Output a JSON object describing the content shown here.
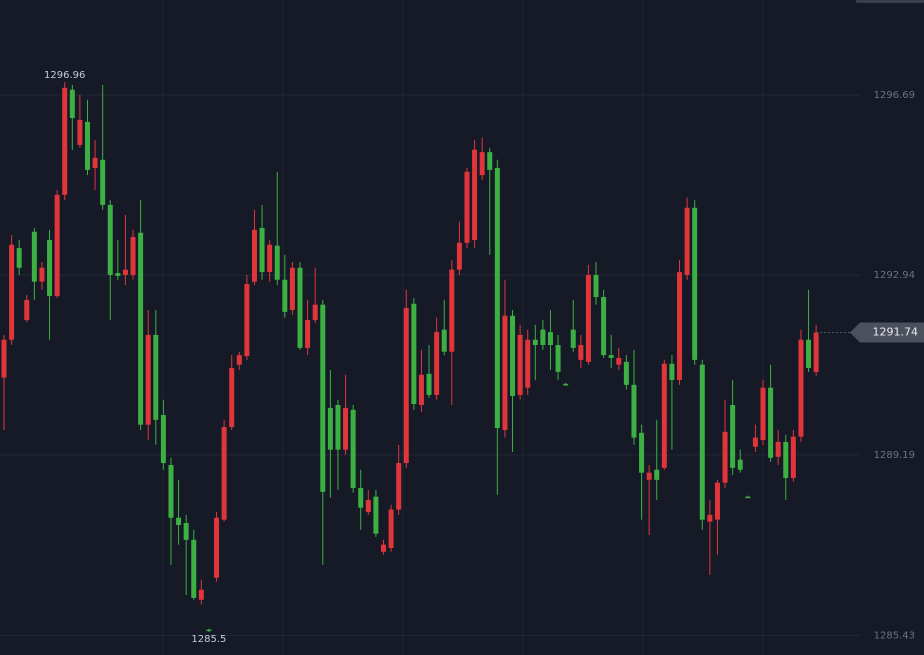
{
  "chart_data": {
    "type": "candlestick",
    "up_color": "#e0353b",
    "down_color": "#3cb043",
    "ylim": [
      1285.02,
      1298.67
    ],
    "yticks": [
      1296.69,
      1292.94,
      1289.19,
      1285.43
    ],
    "grid": true,
    "max_price": 1296.96,
    "min_price": 1285.5,
    "last_price": 1291.74,
    "ohlc": [
      [
        1290.8,
        1291.69,
        1289.71,
        1291.59
      ],
      [
        1291.59,
        1293.77,
        1291.48,
        1293.57
      ],
      [
        1293.5,
        1293.67,
        1292.94,
        1293.09
      ],
      [
        1292.0,
        1292.52,
        1291.96,
        1292.42
      ],
      [
        1293.84,
        1293.92,
        1292.42,
        1292.8
      ],
      [
        1292.8,
        1293.21,
        1292.63,
        1293.09
      ],
      [
        1293.67,
        1293.88,
        1291.59,
        1292.5
      ],
      [
        1292.5,
        1294.71,
        1292.46,
        1294.61
      ],
      [
        1294.61,
        1296.96,
        1294.5,
        1296.84
      ],
      [
        1296.8,
        1296.9,
        1295.55,
        1296.21
      ],
      [
        1295.65,
        1296.69,
        1295.59,
        1296.17
      ],
      [
        1296.13,
        1296.59,
        1295.02,
        1295.13
      ],
      [
        1295.17,
        1295.75,
        1294.71,
        1295.38
      ],
      [
        1295.34,
        1296.9,
        1294.3,
        1294.4
      ],
      [
        1294.4,
        1294.5,
        1292.0,
        1292.94
      ],
      [
        1292.98,
        1293.67,
        1292.84,
        1292.92
      ],
      [
        1292.94,
        1294.19,
        1292.73,
        1293.05
      ],
      [
        1292.94,
        1293.88,
        1292.84,
        1293.73
      ],
      [
        1293.82,
        1294.5,
        1289.71,
        1289.82
      ],
      [
        1289.82,
        1292.21,
        1289.5,
        1291.69
      ],
      [
        1291.69,
        1292.21,
        1289.4,
        1289.92
      ],
      [
        1290.02,
        1290.34,
        1288.88,
        1289.02
      ],
      [
        1288.98,
        1289.13,
        1286.9,
        1287.88
      ],
      [
        1287.88,
        1288.67,
        1287.32,
        1287.73
      ],
      [
        1287.77,
        1287.94,
        1286.27,
        1287.42
      ],
      [
        1287.42,
        1287.63,
        1286.17,
        1286.21
      ],
      [
        1286.17,
        1286.59,
        1286.07,
        1286.38
      ],
      [
        1285.55,
        1285.57,
        1285.5,
        1285.52
      ],
      [
        1286.63,
        1288.0,
        1286.55,
        1287.88
      ],
      [
        1287.84,
        1289.92,
        1287.8,
        1289.77
      ],
      [
        1289.77,
        1291.27,
        1289.71,
        1291.0
      ],
      [
        1291.07,
        1291.34,
        1290.96,
        1291.27
      ],
      [
        1291.25,
        1292.94,
        1291.17,
        1292.75
      ],
      [
        1292.8,
        1294.3,
        1292.73,
        1293.88
      ],
      [
        1293.92,
        1294.4,
        1292.84,
        1293.0
      ],
      [
        1293.0,
        1293.67,
        1292.8,
        1293.57
      ],
      [
        1293.55,
        1295.09,
        1292.73,
        1292.84
      ],
      [
        1292.84,
        1293.36,
        1292.05,
        1292.17
      ],
      [
        1292.21,
        1293.21,
        1292.11,
        1293.09
      ],
      [
        1293.09,
        1293.21,
        1291.38,
        1291.42
      ],
      [
        1291.42,
        1292.42,
        1291.27,
        1292.0
      ],
      [
        1292.0,
        1293.09,
        1291.94,
        1292.32
      ],
      [
        1292.32,
        1292.42,
        1286.9,
        1288.42
      ],
      [
        1290.17,
        1290.96,
        1288.3,
        1289.3
      ],
      [
        1290.23,
        1290.34,
        1288.46,
        1289.3
      ],
      [
        1289.3,
        1290.86,
        1289.19,
        1290.17
      ],
      [
        1290.13,
        1290.23,
        1288.4,
        1288.5
      ],
      [
        1288.5,
        1288.88,
        1287.63,
        1288.09
      ],
      [
        1288.0,
        1288.46,
        1287.94,
        1288.25
      ],
      [
        1288.32,
        1288.46,
        1287.48,
        1287.55
      ],
      [
        1287.17,
        1287.42,
        1287.11,
        1287.32
      ],
      [
        1287.25,
        1288.15,
        1287.17,
        1288.05
      ],
      [
        1288.05,
        1289.4,
        1287.94,
        1289.02
      ],
      [
        1289.02,
        1292.63,
        1288.92,
        1292.25
      ],
      [
        1292.34,
        1292.46,
        1290.13,
        1290.25
      ],
      [
        1290.23,
        1291.38,
        1290.09,
        1290.86
      ],
      [
        1290.88,
        1291.48,
        1290.38,
        1290.44
      ],
      [
        1290.44,
        1292.05,
        1290.34,
        1291.75
      ],
      [
        1291.8,
        1292.42,
        1291.27,
        1291.34
      ],
      [
        1291.34,
        1293.25,
        1290.23,
        1293.05
      ],
      [
        1293.05,
        1294.05,
        1292.94,
        1293.61
      ],
      [
        1293.61,
        1295.17,
        1293.5,
        1295.09
      ],
      [
        1293.67,
        1295.75,
        1293.5,
        1295.55
      ],
      [
        1295.02,
        1295.8,
        1294.92,
        1295.5
      ],
      [
        1295.5,
        1295.59,
        1293.36,
        1295.13
      ],
      [
        1295.17,
        1295.34,
        1288.36,
        1289.75
      ],
      [
        1289.71,
        1292.84,
        1289.55,
        1292.09
      ],
      [
        1292.09,
        1292.21,
        1289.25,
        1290.42
      ],
      [
        1290.44,
        1291.9,
        1290.34,
        1291.69
      ],
      [
        1290.59,
        1291.8,
        1290.44,
        1291.59
      ],
      [
        1291.59,
        1291.9,
        1290.75,
        1291.48
      ],
      [
        1291.8,
        1292.0,
        1291.38,
        1291.48
      ],
      [
        1291.75,
        1292.21,
        1290.96,
        1291.48
      ],
      [
        1291.48,
        1291.69,
        1290.75,
        1290.92
      ],
      [
        1290.67,
        1290.69,
        1290.63,
        1290.65
      ],
      [
        1291.8,
        1292.42,
        1291.34,
        1291.42
      ],
      [
        1291.17,
        1291.69,
        1291.0,
        1291.48
      ],
      [
        1291.13,
        1293.15,
        1291.07,
        1292.94
      ],
      [
        1292.94,
        1293.21,
        1292.32,
        1292.48
      ],
      [
        1292.48,
        1292.63,
        1291.21,
        1291.27
      ],
      [
        1291.27,
        1291.69,
        1291.0,
        1291.21
      ],
      [
        1291.07,
        1291.42,
        1290.96,
        1291.21
      ],
      [
        1291.13,
        1291.27,
        1290.55,
        1290.65
      ],
      [
        1290.65,
        1291.38,
        1289.4,
        1289.55
      ],
      [
        1289.65,
        1289.82,
        1287.84,
        1288.82
      ],
      [
        1288.67,
        1288.98,
        1287.52,
        1288.82
      ],
      [
        1288.88,
        1289.92,
        1288.25,
        1288.67
      ],
      [
        1288.92,
        1291.17,
        1288.88,
        1291.09
      ],
      [
        1291.09,
        1291.27,
        1289.3,
        1290.75
      ],
      [
        1290.75,
        1293.25,
        1290.65,
        1293.0
      ],
      [
        1292.94,
        1294.55,
        1292.84,
        1294.34
      ],
      [
        1294.34,
        1294.5,
        1291.07,
        1291.17
      ],
      [
        1291.07,
        1291.17,
        1287.63,
        1287.84
      ],
      [
        1287.8,
        1288.25,
        1286.69,
        1287.94
      ],
      [
        1287.84,
        1288.67,
        1287.11,
        1288.61
      ],
      [
        1288.61,
        1290.34,
        1288.5,
        1289.67
      ],
      [
        1290.23,
        1290.75,
        1288.77,
        1288.92
      ],
      [
        1289.09,
        1289.3,
        1288.82,
        1288.88
      ],
      [
        1288.32,
        1288.34,
        1288.3,
        1288.31
      ],
      [
        1289.36,
        1289.82,
        1289.25,
        1289.55
      ],
      [
        1289.5,
        1290.75,
        1289.4,
        1290.59
      ],
      [
        1290.59,
        1291.07,
        1289.05,
        1289.13
      ],
      [
        1289.15,
        1289.71,
        1288.98,
        1289.46
      ],
      [
        1289.46,
        1289.61,
        1288.25,
        1288.71
      ],
      [
        1288.71,
        1289.71,
        1288.63,
        1289.57
      ],
      [
        1289.57,
        1291.8,
        1289.46,
        1291.59
      ],
      [
        1291.59,
        1292.63,
        1290.92,
        1291.0
      ],
      [
        1290.92,
        1291.9,
        1290.84,
        1291.74
      ]
    ]
  }
}
